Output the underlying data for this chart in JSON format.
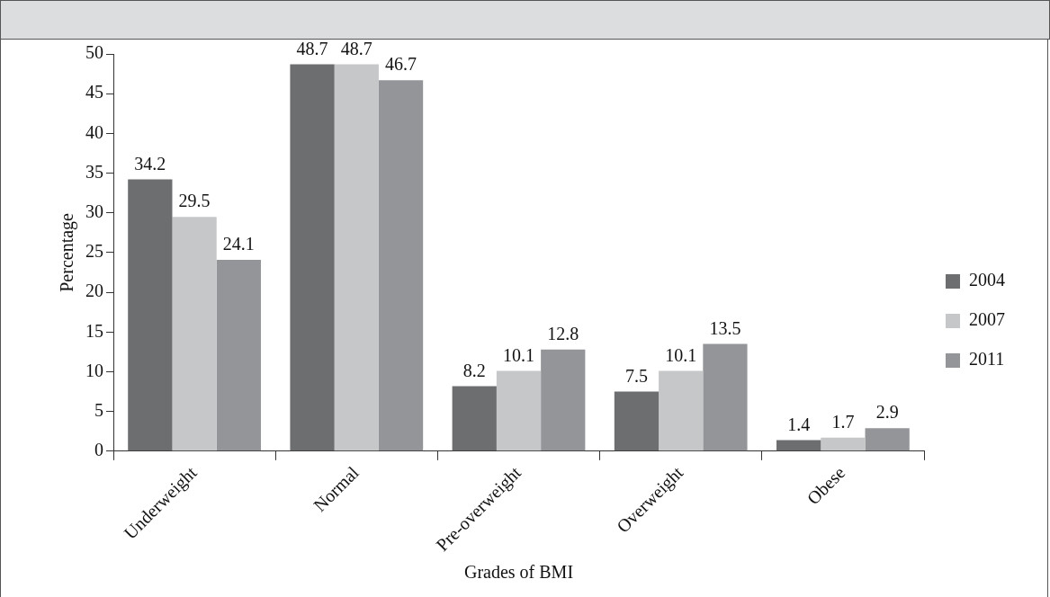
{
  "chart_data": {
    "type": "bar",
    "xlabel": "Grades of BMI",
    "ylabel": "Percentage",
    "categories": [
      "Underweight",
      "Normal",
      "Pre-overweight",
      "Overweight",
      "Obese"
    ],
    "series": [
      {
        "name": "2004",
        "color": "#6d6e70",
        "values": [
          34.2,
          48.7,
          8.2,
          7.5,
          1.4
        ]
      },
      {
        "name": "2007",
        "color": "#c6c7c8",
        "values": [
          29.5,
          48.7,
          10.1,
          10.1,
          1.7
        ]
      },
      {
        "name": "2011",
        "color": "#939598",
        "values": [
          24.1,
          46.7,
          12.8,
          13.5,
          2.9
        ]
      }
    ],
    "ylim": [
      0,
      50
    ],
    "yticks": [
      0,
      5,
      10,
      15,
      20,
      25,
      30,
      35,
      40,
      45,
      50
    ],
    "data_labels": true,
    "grid": false,
    "legend": "right"
  }
}
